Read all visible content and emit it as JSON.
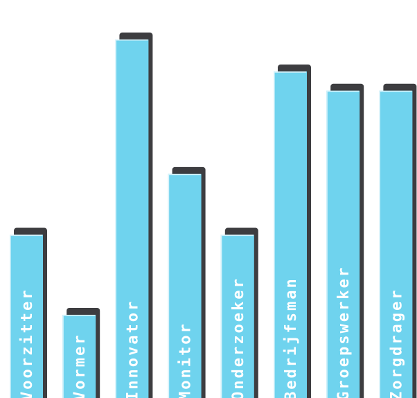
{
  "chart_data": {
    "type": "bar",
    "orientation": "vertical",
    "categories": [
      "Voorzitter",
      "Vormer",
      "Innovator",
      "Monitor",
      "Onderzoeker",
      "Bedrijfsman",
      "Groepswerker",
      "Zorgdrager"
    ],
    "values": [
      51,
      26,
      112,
      70,
      51,
      102,
      96,
      96
    ],
    "ylim": [
      0,
      120
    ],
    "title": "",
    "xlabel": "",
    "ylabel": "",
    "grid": false,
    "legend": "none",
    "labels_inside_bars": true,
    "colors": {
      "bar": "#6fd3ee",
      "bar_highlight": "#d8f3fb",
      "shadow": "#3d3d40",
      "label": "#ffffff"
    }
  }
}
